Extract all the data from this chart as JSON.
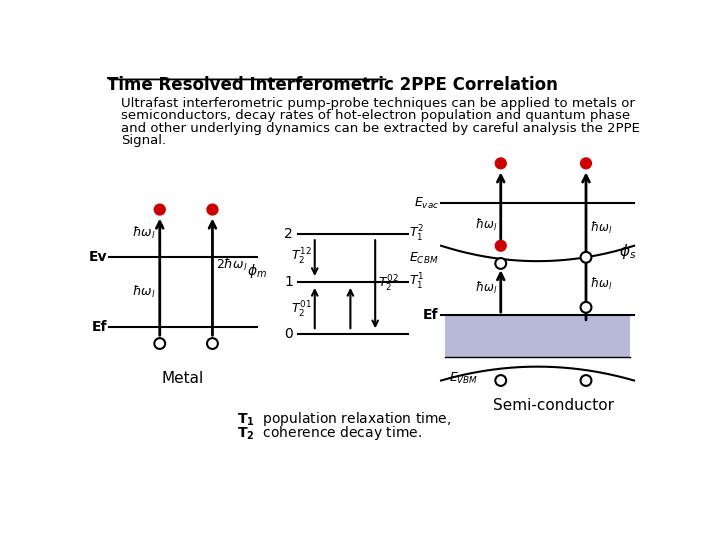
{
  "title": "Time Resolved Interferometric 2PPE Correlation",
  "description_lines": [
    "Ultrafast interferometric pump-probe techniques can be applied to metals or",
    "semiconductors, decay rates of hot-electron population and quantum phase",
    "and other underlying dynamics can be extracted by careful analysis the 2PPE",
    "Signal."
  ],
  "bg_color": "#ffffff",
  "text_color": "#000000",
  "red_dot_color": "#cc0000",
  "fill_color": "#b8b8d8"
}
